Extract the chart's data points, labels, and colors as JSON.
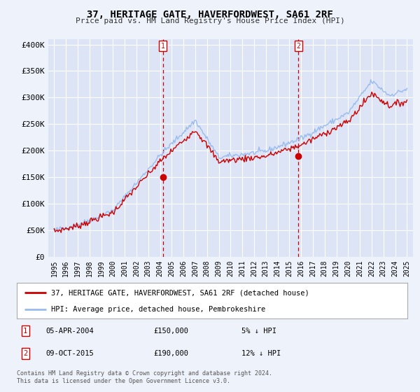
{
  "title": "37, HERITAGE GATE, HAVERFORDWEST, SA61 2RF",
  "subtitle": "Price paid vs. HM Land Registry's House Price Index (HPI)",
  "legend_line1": "37, HERITAGE GATE, HAVERFORDWEST, SA61 2RF (detached house)",
  "legend_line2": "HPI: Average price, detached house, Pembrokeshire",
  "transaction1_date": "05-APR-2004",
  "transaction1_price": "£150,000",
  "transaction1_hpi": "5% ↓ HPI",
  "transaction1_year": 2004.25,
  "transaction1_value": 150000,
  "transaction2_date": "09-OCT-2015",
  "transaction2_price": "£190,000",
  "transaction2_hpi": "12% ↓ HPI",
  "transaction2_year": 2015.77,
  "transaction2_value": 190000,
  "ylim": [
    0,
    410000
  ],
  "xlim": [
    1994.5,
    2025.5
  ],
  "yticks": [
    0,
    50000,
    100000,
    150000,
    200000,
    250000,
    300000,
    350000,
    400000
  ],
  "ytick_labels": [
    "£0",
    "£50K",
    "£100K",
    "£150K",
    "£200K",
    "£250K",
    "£300K",
    "£350K",
    "£400K"
  ],
  "xticks": [
    1995,
    1996,
    1997,
    1998,
    1999,
    2000,
    2001,
    2002,
    2003,
    2004,
    2005,
    2006,
    2007,
    2008,
    2009,
    2010,
    2011,
    2012,
    2013,
    2014,
    2015,
    2016,
    2017,
    2018,
    2019,
    2020,
    2021,
    2022,
    2023,
    2024,
    2025
  ],
  "background_color": "#eef2fb",
  "plot_bg_color": "#dde4f5",
  "grid_color": "#ffffff",
  "line_color_red": "#cc0000",
  "line_color_blue": "#99bbee",
  "vline_color": "#cc0000",
  "footnote1": "Contains HM Land Registry data © Crown copyright and database right 2024.",
  "footnote2": "This data is licensed under the Open Government Licence v3.0."
}
